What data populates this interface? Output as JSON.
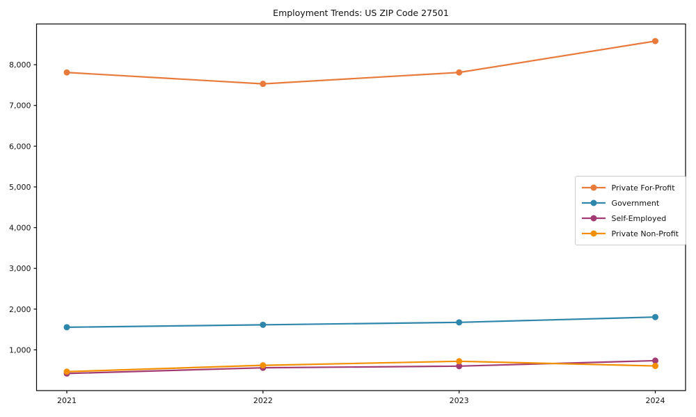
{
  "page": {
    "title": "Employment Trends: US ZIP Code 27501"
  },
  "chart_data": {
    "type": "line",
    "title": "Employment Trends: US ZIP Code 27501",
    "categories": [
      "2021",
      "2022",
      "2023",
      "2024"
    ],
    "series": [
      {
        "name": "Private For-Profit",
        "color": "#E87A3B",
        "values": [
          7810,
          7530,
          7810,
          8580
        ]
      },
      {
        "name": "Government",
        "color": "#2E86AB",
        "values": [
          1555,
          1615,
          1675,
          1805
        ]
      },
      {
        "name": "Self-Employed",
        "color": "#A23B72",
        "values": [
          420,
          560,
          600,
          735
        ]
      },
      {
        "name": "Private Non-Profit",
        "color": "#F18F01",
        "values": [
          465,
          620,
          720,
          605
        ]
      }
    ],
    "xlabel": "",
    "ylabel": "",
    "ylim": [
      0,
      9000
    ],
    "yticks": [
      1000,
      2000,
      3000,
      4000,
      5000,
      6000,
      7000,
      8000
    ],
    "ytick_labels": [
      "1,000",
      "2,000",
      "3,000",
      "4,000",
      "5,000",
      "6,000",
      "7,000",
      "8,000"
    ],
    "grid": false,
    "marker": "circle",
    "legend_position": "center right",
    "axis_color": "#000000",
    "background_color": "#ffffff"
  }
}
